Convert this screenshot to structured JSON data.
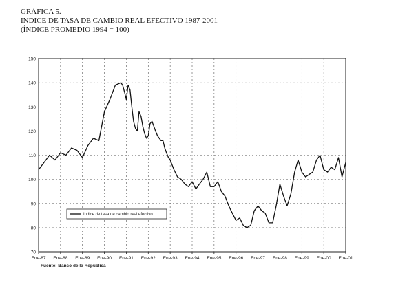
{
  "header": {
    "line1": "GRÁFICA 5.",
    "line2": "INDICE DE TASA DE CAMBIO REAL EFECTIVO 1987-2001",
    "line3": "(ÍNDICE PROMEDIO 1994 = 100)"
  },
  "source": "Fuente: Banco de la República",
  "chart_data": {
    "type": "line",
    "title": "INDICE DE TASA DE CAMBIO REAL EFECTIVO 1987-2001",
    "subtitle": "(ÍNDICE PROMEDIO 1994 = 100)",
    "xlabel": "",
    "ylabel": "",
    "ylim": [
      70,
      150
    ],
    "yticks": [
      70,
      80,
      90,
      100,
      110,
      120,
      130,
      140,
      150
    ],
    "xticks": [
      "Ene-87",
      "Ene-88",
      "Ene-89",
      "Ene-90",
      "Ene-91",
      "Ene-92",
      "Ene-93",
      "Ene-94",
      "Ene-95",
      "Ene-96",
      "Ene-97",
      "Ene-98",
      "Ene-99",
      "Ene-00",
      "Ene-01"
    ],
    "grid": true,
    "legend": "bottom-left",
    "series": [
      {
        "name": "Indice de tasa de cambio real efectivo",
        "color": "#111111",
        "x": [
          1987.0,
          1987.25,
          1987.5,
          1987.75,
          1988.0,
          1988.25,
          1988.5,
          1988.75,
          1989.0,
          1989.25,
          1989.5,
          1989.75,
          1990.0,
          1990.25,
          1990.5,
          1990.75,
          1990.83,
          1990.92,
          1991.0,
          1991.08,
          1991.17,
          1991.25,
          1991.33,
          1991.42,
          1991.5,
          1991.58,
          1991.67,
          1991.75,
          1991.83,
          1991.92,
          1992.0,
          1992.08,
          1992.17,
          1992.25,
          1992.33,
          1992.42,
          1992.5,
          1992.58,
          1992.67,
          1992.75,
          1992.83,
          1992.92,
          1993.0,
          1993.17,
          1993.33,
          1993.5,
          1993.67,
          1993.83,
          1994.0,
          1994.17,
          1994.33,
          1994.5,
          1994.67,
          1994.83,
          1995.0,
          1995.17,
          1995.33,
          1995.5,
          1995.67,
          1995.83,
          1996.0,
          1996.17,
          1996.33,
          1996.5,
          1996.67,
          1996.83,
          1997.0,
          1997.17,
          1997.33,
          1997.5,
          1997.67,
          1997.83,
          1998.0,
          1998.17,
          1998.33,
          1998.5,
          1998.67,
          1998.83,
          1999.0,
          1999.17,
          1999.33,
          1999.5,
          1999.67,
          1999.83,
          2000.0,
          2000.17,
          2000.33,
          2000.5,
          2000.67,
          2000.83,
          2001.0
        ],
        "values": [
          104,
          107,
          110,
          108,
          111,
          110,
          113,
          112,
          109,
          114,
          117,
          116,
          128,
          133,
          139,
          140,
          139,
          136,
          133,
          139,
          137,
          130,
          124,
          121,
          120,
          128,
          126,
          122,
          119,
          117,
          118,
          123,
          124,
          122,
          120,
          118,
          117,
          116,
          116,
          113,
          111,
          109,
          108,
          104,
          101,
          100,
          98,
          97,
          99,
          96,
          98,
          100,
          103,
          97,
          97,
          99,
          95,
          93,
          89,
          86,
          83,
          84,
          81,
          80,
          81,
          87,
          89,
          87,
          86,
          82,
          82,
          89,
          98,
          93,
          89,
          94,
          103,
          108,
          103,
          101,
          102,
          103,
          108,
          110,
          104,
          103,
          105,
          104,
          109,
          101,
          107
        ]
      }
    ]
  }
}
